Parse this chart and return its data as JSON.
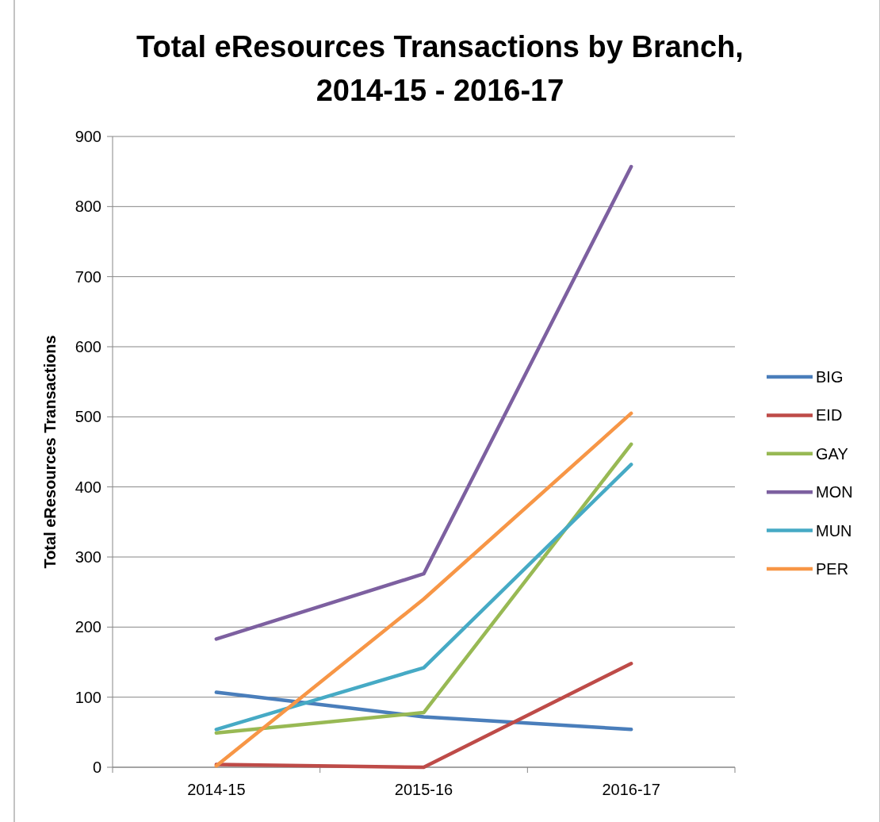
{
  "chart_data": {
    "type": "line",
    "title": "Total eResources Transactions by Branch,\n2014-15 - 2016-17",
    "ylabel": "Total eResources Transactions",
    "categories": [
      "2014-15",
      "2015-16",
      "2016-17"
    ],
    "series": [
      {
        "name": "BIG",
        "color": "#4a7ebb",
        "values": [
          107,
          72,
          54
        ]
      },
      {
        "name": "EID",
        "color": "#be4b48",
        "values": [
          4,
          0,
          148
        ]
      },
      {
        "name": "GAY",
        "color": "#98b954",
        "values": [
          49,
          78,
          461
        ]
      },
      {
        "name": "MON",
        "color": "#7d60a0",
        "values": [
          183,
          276,
          857
        ]
      },
      {
        "name": "MUN",
        "color": "#46aac5",
        "values": [
          54,
          142,
          432
        ]
      },
      {
        "name": "PER",
        "color": "#f79646",
        "values": [
          2,
          240,
          505
        ]
      }
    ],
    "ylim": [
      0,
      900
    ],
    "yticks": [
      0,
      100,
      200,
      300,
      400,
      500,
      600,
      700,
      800,
      900
    ],
    "grid": "y",
    "legend": "right",
    "marker": "none",
    "line_style": "solid"
  }
}
